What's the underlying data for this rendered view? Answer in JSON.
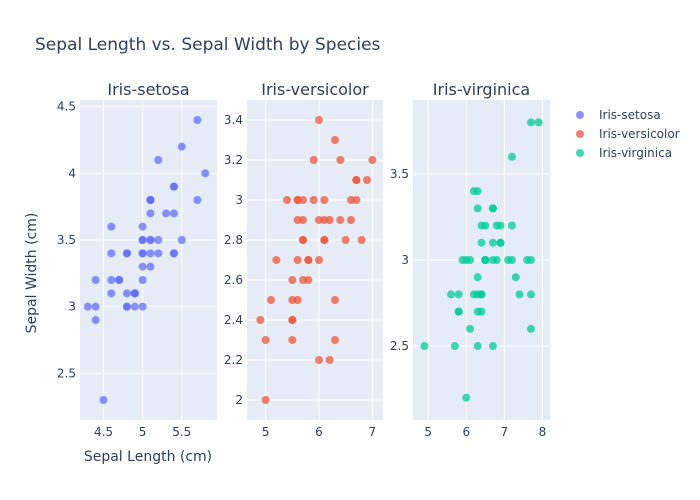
{
  "chart_data": {
    "type": "scatter",
    "title": "Sepal Length vs. Sepal Width by Species",
    "xlabel": "Sepal Length (cm)",
    "ylabel": "Sepal Width (cm)",
    "legend": [
      "Iris-setosa",
      "Iris-versicolor",
      "Iris-virginica"
    ],
    "colors": [
      "#636efa",
      "#ef553b",
      "#00cc96"
    ],
    "panels": [
      {
        "name": "Iris-setosa",
        "xlim": [
          4.2,
          5.95
        ],
        "ylim": [
          2.15,
          4.55
        ],
        "xticks": [
          4.5,
          5,
          5.5
        ],
        "xticklabels": [
          "4.5",
          "5",
          "5.5"
        ],
        "yticks": [
          2.5,
          3,
          3.5,
          4,
          4.5
        ],
        "yticklabels": [
          "2.5",
          "3",
          "3.5",
          "4",
          "4.5"
        ],
        "points": [
          [
            5.1,
            3.5
          ],
          [
            4.9,
            3.0
          ],
          [
            4.7,
            3.2
          ],
          [
            4.6,
            3.1
          ],
          [
            5.0,
            3.6
          ],
          [
            5.4,
            3.9
          ],
          [
            4.6,
            3.4
          ],
          [
            5.0,
            3.4
          ],
          [
            4.4,
            2.9
          ],
          [
            4.9,
            3.1
          ],
          [
            5.4,
            3.7
          ],
          [
            4.8,
            3.4
          ],
          [
            4.8,
            3.0
          ],
          [
            4.3,
            3.0
          ],
          [
            5.8,
            4.0
          ],
          [
            5.7,
            4.4
          ],
          [
            5.4,
            3.9
          ],
          [
            5.1,
            3.5
          ],
          [
            5.7,
            3.8
          ],
          [
            5.1,
            3.8
          ],
          [
            5.4,
            3.4
          ],
          [
            5.1,
            3.7
          ],
          [
            4.6,
            3.6
          ],
          [
            5.1,
            3.3
          ],
          [
            4.8,
            3.4
          ],
          [
            5.0,
            3.0
          ],
          [
            5.0,
            3.4
          ],
          [
            5.2,
            3.5
          ],
          [
            5.2,
            3.4
          ],
          [
            4.7,
            3.2
          ],
          [
            4.8,
            3.1
          ],
          [
            5.4,
            3.4
          ],
          [
            5.2,
            4.1
          ],
          [
            5.5,
            4.2
          ],
          [
            4.9,
            3.1
          ],
          [
            5.0,
            3.2
          ],
          [
            5.5,
            3.5
          ],
          [
            4.9,
            3.1
          ],
          [
            4.4,
            3.0
          ],
          [
            5.1,
            3.4
          ],
          [
            5.0,
            3.5
          ],
          [
            4.5,
            2.3
          ],
          [
            4.4,
            3.2
          ],
          [
            5.0,
            3.5
          ],
          [
            5.1,
            3.8
          ],
          [
            4.8,
            3.0
          ],
          [
            5.1,
            3.8
          ],
          [
            4.6,
            3.2
          ],
          [
            5.3,
            3.7
          ],
          [
            5.0,
            3.3
          ]
        ]
      },
      {
        "name": "Iris-versicolor",
        "xlim": [
          4.65,
          7.2
        ],
        "ylim": [
          1.9,
          3.5
        ],
        "xticks": [
          5,
          6,
          7
        ],
        "xticklabels": [
          "5",
          "6",
          "7"
        ],
        "yticks": [
          2,
          2.2,
          2.4,
          2.6,
          2.8,
          3,
          3.2,
          3.4
        ],
        "yticklabels": [
          "2",
          "2.2",
          "2.4",
          "2.6",
          "2.8",
          "3",
          "3.2",
          "3.4"
        ],
        "points": [
          [
            7.0,
            3.2
          ],
          [
            6.4,
            3.2
          ],
          [
            6.9,
            3.1
          ],
          [
            5.5,
            2.3
          ],
          [
            6.5,
            2.8
          ],
          [
            5.7,
            2.8
          ],
          [
            6.3,
            3.3
          ],
          [
            4.9,
            2.4
          ],
          [
            6.6,
            2.9
          ],
          [
            5.2,
            2.7
          ],
          [
            5.0,
            2.0
          ],
          [
            5.9,
            3.0
          ],
          [
            6.0,
            2.2
          ],
          [
            6.1,
            2.9
          ],
          [
            5.6,
            2.9
          ],
          [
            6.7,
            3.1
          ],
          [
            5.6,
            3.0
          ],
          [
            5.8,
            2.7
          ],
          [
            6.2,
            2.2
          ],
          [
            5.6,
            2.5
          ],
          [
            5.9,
            3.2
          ],
          [
            6.1,
            2.8
          ],
          [
            6.3,
            2.5
          ],
          [
            6.1,
            2.8
          ],
          [
            6.4,
            2.9
          ],
          [
            6.6,
            3.0
          ],
          [
            6.8,
            2.8
          ],
          [
            6.7,
            3.0
          ],
          [
            6.0,
            2.9
          ],
          [
            5.7,
            2.6
          ],
          [
            5.5,
            2.4
          ],
          [
            5.5,
            2.4
          ],
          [
            5.8,
            2.7
          ],
          [
            6.0,
            2.7
          ],
          [
            5.4,
            3.0
          ],
          [
            6.0,
            3.4
          ],
          [
            6.7,
            3.1
          ],
          [
            6.3,
            2.3
          ],
          [
            5.6,
            3.0
          ],
          [
            5.5,
            2.5
          ],
          [
            5.5,
            2.6
          ],
          [
            6.1,
            3.0
          ],
          [
            5.8,
            2.6
          ],
          [
            5.0,
            2.3
          ],
          [
            5.6,
            2.7
          ],
          [
            5.7,
            3.0
          ],
          [
            5.7,
            2.9
          ],
          [
            6.2,
            2.9
          ],
          [
            5.1,
            2.5
          ],
          [
            5.7,
            2.8
          ]
        ]
      },
      {
        "name": "Iris-virginica",
        "xlim": [
          4.6,
          8.2
        ],
        "ylim": [
          2.07,
          3.93
        ],
        "xticks": [
          5,
          6,
          7,
          8
        ],
        "xticklabels": [
          "5",
          "6",
          "7",
          "8"
        ],
        "yticks": [
          2.5,
          3,
          3.5
        ],
        "yticklabels": [
          "2.5",
          "3",
          "3.5"
        ],
        "points": [
          [
            6.3,
            3.3
          ],
          [
            5.8,
            2.7
          ],
          [
            7.1,
            3.0
          ],
          [
            6.3,
            2.9
          ],
          [
            6.5,
            3.0
          ],
          [
            7.6,
            3.0
          ],
          [
            4.9,
            2.5
          ],
          [
            7.3,
            2.9
          ],
          [
            6.7,
            2.5
          ],
          [
            7.2,
            3.6
          ],
          [
            6.5,
            3.2
          ],
          [
            6.4,
            2.7
          ],
          [
            6.8,
            3.0
          ],
          [
            5.7,
            2.5
          ],
          [
            5.8,
            2.8
          ],
          [
            6.4,
            3.2
          ],
          [
            6.5,
            3.0
          ],
          [
            7.7,
            3.8
          ],
          [
            7.7,
            2.6
          ],
          [
            6.0,
            2.2
          ],
          [
            6.9,
            3.2
          ],
          [
            5.6,
            2.8
          ],
          [
            7.7,
            2.8
          ],
          [
            6.3,
            2.7
          ],
          [
            6.7,
            3.3
          ],
          [
            7.2,
            3.2
          ],
          [
            6.2,
            2.8
          ],
          [
            6.1,
            3.0
          ],
          [
            6.4,
            2.8
          ],
          [
            7.2,
            3.0
          ],
          [
            7.4,
            2.8
          ],
          [
            7.9,
            3.8
          ],
          [
            6.4,
            2.8
          ],
          [
            6.3,
            2.8
          ],
          [
            6.1,
            2.6
          ],
          [
            7.7,
            3.0
          ],
          [
            6.3,
            3.4
          ],
          [
            6.4,
            3.1
          ],
          [
            6.0,
            3.0
          ],
          [
            6.9,
            3.1
          ],
          [
            6.7,
            3.1
          ],
          [
            6.9,
            3.1
          ],
          [
            5.8,
            2.7
          ],
          [
            6.8,
            3.2
          ],
          [
            6.7,
            3.3
          ],
          [
            6.7,
            3.0
          ],
          [
            6.3,
            2.5
          ],
          [
            6.5,
            3.0
          ],
          [
            6.2,
            3.4
          ],
          [
            5.9,
            3.0
          ]
        ]
      }
    ]
  }
}
